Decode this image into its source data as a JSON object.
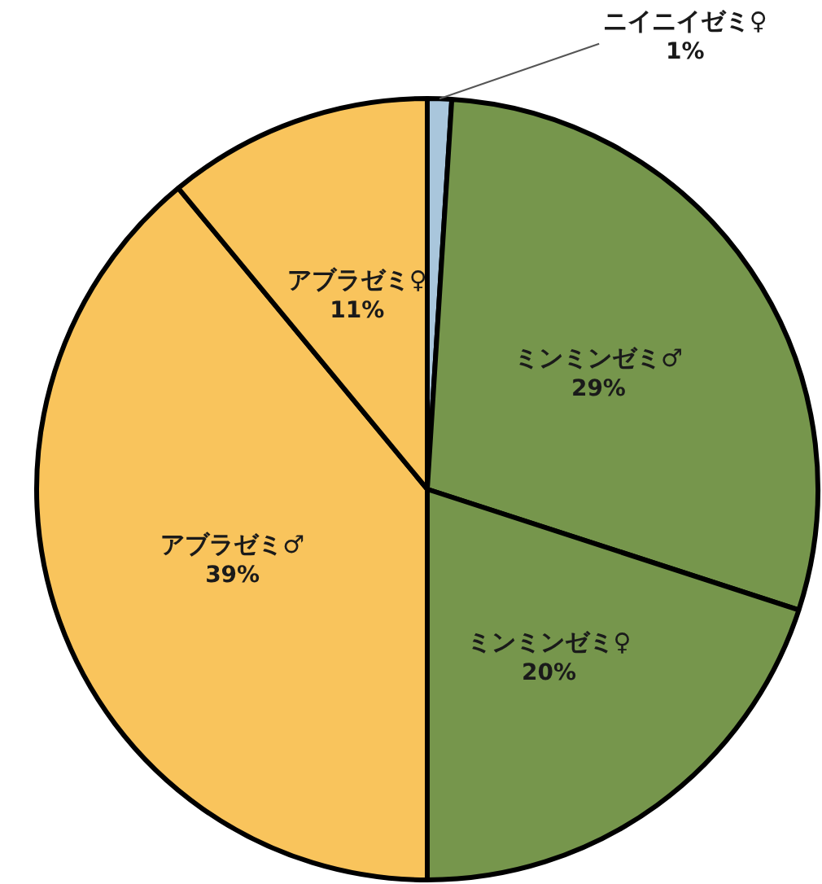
{
  "chart_data": {
    "type": "pie",
    "categories": [
      "ニイニイゼミ♀",
      "ミンミンゼミ♂",
      "ミンミンゼミ♀",
      "アブラゼミ♂",
      "アブラゼミ♀"
    ],
    "values": [
      1,
      29,
      20,
      39,
      11
    ],
    "colors": [
      "#a9c6dc",
      "#76964c",
      "#76964c",
      "#f9c45c",
      "#f9c45c"
    ],
    "value_labels": [
      "1%",
      "29%",
      "20%",
      "39%",
      "11%"
    ]
  }
}
